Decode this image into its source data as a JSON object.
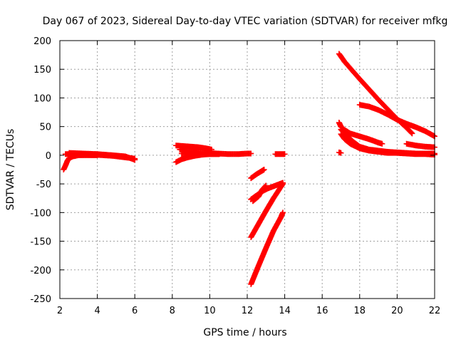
{
  "chart_data": {
    "type": "scatter",
    "title": "Day 067 of 2023, Sidereal Day-to-day VTEC variation (SDTVAR) for receiver mfkg",
    "xlabel": "GPS time / hours",
    "ylabel": "SDTVAR / TECUs",
    "xlim": [
      2,
      22
    ],
    "ylim": [
      -250,
      200
    ],
    "xticks": [
      2,
      4,
      6,
      8,
      10,
      12,
      14,
      16,
      18,
      20,
      22
    ],
    "yticks": [
      -250,
      -200,
      -150,
      -100,
      -50,
      0,
      50,
      100,
      150,
      200
    ],
    "grid": true,
    "legend": "none",
    "marker": "plus",
    "color": "#ff0000",
    "series": [
      {
        "points": [
          [
            2.2,
            -25
          ],
          [
            2.3,
            -18
          ],
          [
            2.4,
            -10
          ],
          [
            2.5,
            -5
          ],
          [
            2.7,
            -2
          ],
          [
            3.0,
            0
          ],
          [
            3.5,
            0
          ],
          [
            4.0,
            0
          ]
        ]
      },
      {
        "points": [
          [
            2.3,
            2
          ],
          [
            2.8,
            2
          ],
          [
            3.3,
            2
          ],
          [
            3.8,
            1
          ],
          [
            4.3,
            0
          ],
          [
            4.8,
            -1
          ],
          [
            5.3,
            -3
          ],
          [
            5.8,
            -5
          ],
          [
            6.0,
            -6
          ]
        ]
      },
      {
        "points": [
          [
            2.5,
            4
          ],
          [
            3.2,
            3
          ],
          [
            4.0,
            2
          ],
          [
            4.8,
            0
          ],
          [
            5.5,
            -2
          ],
          [
            6.0,
            -8
          ]
        ]
      },
      {
        "points": [
          [
            8.2,
            -12
          ],
          [
            8.5,
            -7
          ],
          [
            8.8,
            -4
          ],
          [
            9.2,
            -1
          ],
          [
            9.6,
            1
          ],
          [
            10.0,
            2
          ],
          [
            10.5,
            2
          ]
        ]
      },
      {
        "points": [
          [
            8.2,
            17
          ],
          [
            8.6,
            16
          ],
          [
            9.0,
            15
          ],
          [
            9.4,
            14
          ],
          [
            9.8,
            12
          ],
          [
            10.1,
            10
          ]
        ]
      },
      {
        "points": [
          [
            8.4,
            10
          ],
          [
            8.9,
            8
          ],
          [
            9.4,
            6
          ],
          [
            9.9,
            4
          ],
          [
            10.4,
            3
          ],
          [
            11.0,
            2
          ],
          [
            11.5,
            2
          ],
          [
            12.0,
            3
          ],
          [
            12.2,
            3
          ]
        ]
      },
      {
        "points": [
          [
            8.5,
            3
          ],
          [
            9.0,
            2
          ],
          [
            9.5,
            2
          ],
          [
            10.0,
            2
          ],
          [
            10.5,
            2
          ]
        ]
      },
      {
        "points": [
          [
            12.2,
            -40
          ],
          [
            12.5,
            -33
          ],
          [
            12.8,
            -27
          ],
          [
            12.9,
            -25
          ]
        ]
      },
      {
        "points": [
          [
            12.2,
            -77
          ],
          [
            12.5,
            -70
          ],
          [
            12.8,
            -63
          ],
          [
            13.1,
            -58
          ],
          [
            13.5,
            -53
          ],
          [
            13.9,
            -48
          ]
        ]
      },
      {
        "points": [
          [
            12.3,
            -80
          ],
          [
            12.6,
            -72
          ],
          [
            12.8,
            -60
          ],
          [
            13.0,
            -53
          ]
        ]
      },
      {
        "points": [
          [
            12.2,
            -143
          ],
          [
            12.6,
            -120
          ],
          [
            13.0,
            -97
          ],
          [
            13.4,
            -75
          ],
          [
            13.8,
            -55
          ],
          [
            13.9,
            -50
          ]
        ]
      },
      {
        "points": [
          [
            12.2,
            -225
          ],
          [
            12.6,
            -193
          ],
          [
            13.0,
            -162
          ],
          [
            13.4,
            -132
          ],
          [
            13.8,
            -108
          ],
          [
            13.9,
            -100
          ]
        ]
      },
      {
        "points": [
          [
            13.5,
            2
          ],
          [
            13.8,
            2
          ],
          [
            14.0,
            2
          ]
        ]
      },
      {
        "points": [
          [
            16.9,
            177
          ],
          [
            17.2,
            163
          ],
          [
            17.6,
            148
          ],
          [
            18.0,
            133
          ],
          [
            18.5,
            115
          ],
          [
            19.0,
            97
          ],
          [
            19.5,
            80
          ],
          [
            20.0,
            63
          ],
          [
            20.5,
            48
          ],
          [
            20.8,
            38
          ]
        ]
      },
      {
        "points": [
          [
            18.0,
            88
          ],
          [
            18.5,
            85
          ],
          [
            19.0,
            79
          ],
          [
            19.5,
            71
          ],
          [
            20.0,
            62
          ],
          [
            20.5,
            55
          ],
          [
            21.0,
            49
          ],
          [
            21.5,
            42
          ],
          [
            22.0,
            33
          ]
        ]
      },
      {
        "points": [
          [
            16.9,
            57
          ],
          [
            17.0,
            50
          ],
          [
            17.2,
            44
          ],
          [
            17.5,
            38
          ],
          [
            18.0,
            33
          ],
          [
            18.5,
            28
          ],
          [
            19.0,
            22
          ],
          [
            19.2,
            20
          ]
        ]
      },
      {
        "points": [
          [
            17.0,
            45
          ],
          [
            17.3,
            35
          ],
          [
            17.6,
            25
          ],
          [
            18.0,
            15
          ],
          [
            18.5,
            10
          ],
          [
            19.0,
            8
          ],
          [
            19.5,
            6
          ],
          [
            20.0,
            5
          ],
          [
            20.5,
            4
          ],
          [
            21.0,
            3
          ],
          [
            21.5,
            3
          ],
          [
            22.0,
            3
          ]
        ]
      },
      {
        "points": [
          [
            17.0,
            37
          ],
          [
            17.2,
            28
          ],
          [
            17.5,
            20
          ],
          [
            18.0,
            12
          ],
          [
            18.5,
            8
          ],
          [
            19.0,
            6
          ],
          [
            19.5,
            4
          ],
          [
            20.0,
            4
          ],
          [
            20.5,
            3
          ],
          [
            21.0,
            2
          ],
          [
            21.5,
            2
          ],
          [
            22.0,
            1
          ]
        ]
      },
      {
        "points": [
          [
            16.9,
            5
          ],
          [
            17.0,
            4
          ]
        ]
      },
      {
        "points": [
          [
            20.5,
            20
          ],
          [
            21.0,
            17
          ],
          [
            21.5,
            15
          ],
          [
            22.0,
            14
          ]
        ]
      }
    ]
  }
}
